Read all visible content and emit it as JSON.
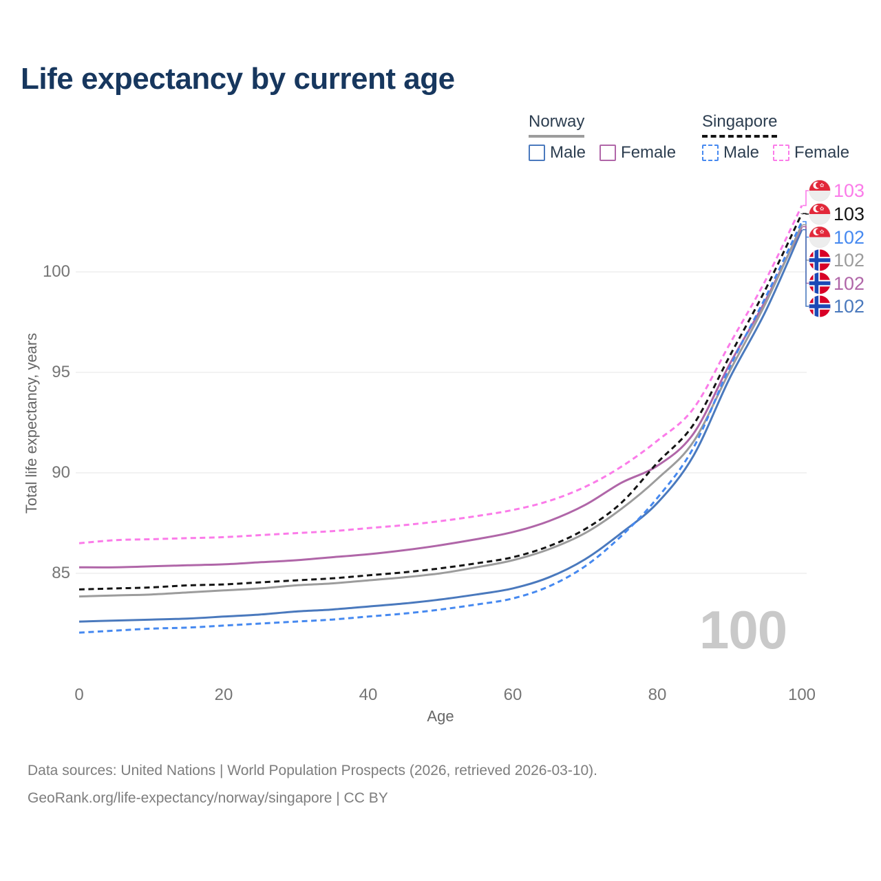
{
  "page_title": "Life expectancy by current age",
  "legend": {
    "groups": [
      {
        "id": "norway",
        "label": "Norway",
        "line_style": "solid",
        "line_color": "#9c9c9c",
        "items": [
          {
            "label": "Male",
            "color": "#4a79bd",
            "dashed": false
          },
          {
            "label": "Female",
            "color": "#b066a8",
            "dashed": false
          }
        ]
      },
      {
        "id": "singapore",
        "label": "Singapore",
        "line_style": "dashed",
        "line_color": "#141414",
        "items": [
          {
            "label": "Male",
            "color": "#4689f0",
            "dashed": true
          },
          {
            "label": "Female",
            "color": "#fb7be9",
            "dashed": true
          }
        ]
      }
    ]
  },
  "watermark": "100",
  "footer": {
    "line1": "Data sources: United Nations | World Population Prospects (2026, retrieved 2026-03-10).",
    "line2": "GeoRank.org/life-expectancy/norway/singapore | CC BY"
  },
  "chart_data": {
    "type": "line",
    "title": "Life expectancy by current age",
    "xlabel": "Age",
    "ylabel": "Total life expectancy, years",
    "xlim": [
      0,
      100
    ],
    "ylim": [
      81.5,
      104.5
    ],
    "grid": "horizontal",
    "legend_position": "top-right",
    "xticks": [
      "0",
      "20",
      "40",
      "60",
      "80",
      "100"
    ],
    "yticks": [
      "85",
      "90",
      "95",
      "100"
    ],
    "xtick_values": [
      0,
      20,
      40,
      60,
      80,
      100
    ],
    "ytick_values": [
      85,
      90,
      95,
      100
    ],
    "x": [
      0,
      5,
      10,
      15,
      20,
      25,
      30,
      35,
      40,
      45,
      50,
      55,
      60,
      65,
      70,
      75,
      80,
      85,
      90,
      95,
      100
    ],
    "series": [
      {
        "name": "Singapore Female",
        "country": "Singapore",
        "sex": "Female",
        "color": "#fb7be9",
        "dashed": true,
        "values": [
          86.5,
          86.65,
          86.7,
          86.75,
          86.8,
          86.9,
          87.0,
          87.1,
          87.25,
          87.4,
          87.6,
          87.85,
          88.15,
          88.6,
          89.3,
          90.3,
          91.6,
          93.2,
          96.4,
          99.6,
          103.3
        ]
      },
      {
        "name": "Singapore",
        "country": "Singapore",
        "sex": "Both",
        "color": "#141414",
        "dashed": true,
        "values": [
          84.2,
          84.25,
          84.3,
          84.4,
          84.45,
          84.55,
          84.65,
          84.75,
          84.9,
          85.05,
          85.25,
          85.5,
          85.8,
          86.35,
          87.2,
          88.5,
          90.5,
          92.4,
          95.8,
          99.15,
          102.9
        ]
      },
      {
        "name": "Singapore Male",
        "country": "Singapore",
        "sex": "Male",
        "color": "#4689f0",
        "dashed": true,
        "values": [
          82.05,
          82.15,
          82.25,
          82.3,
          82.4,
          82.5,
          82.6,
          82.7,
          82.85,
          83.0,
          83.2,
          83.45,
          83.75,
          84.35,
          85.35,
          86.85,
          88.75,
          91.25,
          95.25,
          98.75,
          102.5
        ]
      },
      {
        "name": "Norway",
        "country": "Norway",
        "sex": "Both",
        "color": "#9c9c9c",
        "dashed": false,
        "values": [
          83.85,
          83.9,
          83.95,
          84.05,
          84.15,
          84.25,
          84.4,
          84.5,
          84.65,
          84.8,
          85.0,
          85.3,
          85.65,
          86.2,
          87.0,
          88.2,
          89.7,
          91.55,
          95.05,
          98.45,
          102.35
        ]
      },
      {
        "name": "Norway Female",
        "country": "Norway",
        "sex": "Female",
        "color": "#b066a8",
        "dashed": false,
        "values": [
          85.3,
          85.3,
          85.35,
          85.4,
          85.45,
          85.55,
          85.65,
          85.8,
          85.95,
          86.15,
          86.4,
          86.7,
          87.05,
          87.6,
          88.4,
          89.5,
          90.35,
          91.95,
          95.4,
          98.6,
          102.25
        ]
      },
      {
        "name": "Norway Male",
        "country": "Norway",
        "sex": "Male",
        "color": "#4a79bd",
        "dashed": false,
        "values": [
          82.6,
          82.65,
          82.7,
          82.75,
          82.85,
          82.95,
          83.1,
          83.2,
          83.35,
          83.5,
          83.7,
          83.95,
          84.25,
          84.8,
          85.7,
          87.0,
          88.5,
          90.85,
          94.7,
          98.05,
          102.1
        ]
      }
    ],
    "end_labels": [
      {
        "value": "103",
        "flag": "singapore",
        "series": "Singapore Female",
        "color": "#fb7be9"
      },
      {
        "value": "103",
        "flag": "singapore",
        "series": "Singapore",
        "color": "#141414"
      },
      {
        "value": "102",
        "flag": "singapore",
        "series": "Singapore Male",
        "color": "#4689f0"
      },
      {
        "value": "102",
        "flag": "norway",
        "series": "Norway",
        "color": "#9c9c9c"
      },
      {
        "value": "102",
        "flag": "norway",
        "series": "Norway Female",
        "color": "#b066a8"
      },
      {
        "value": "102",
        "flag": "norway",
        "series": "Norway Male",
        "color": "#4a79bd"
      }
    ]
  }
}
